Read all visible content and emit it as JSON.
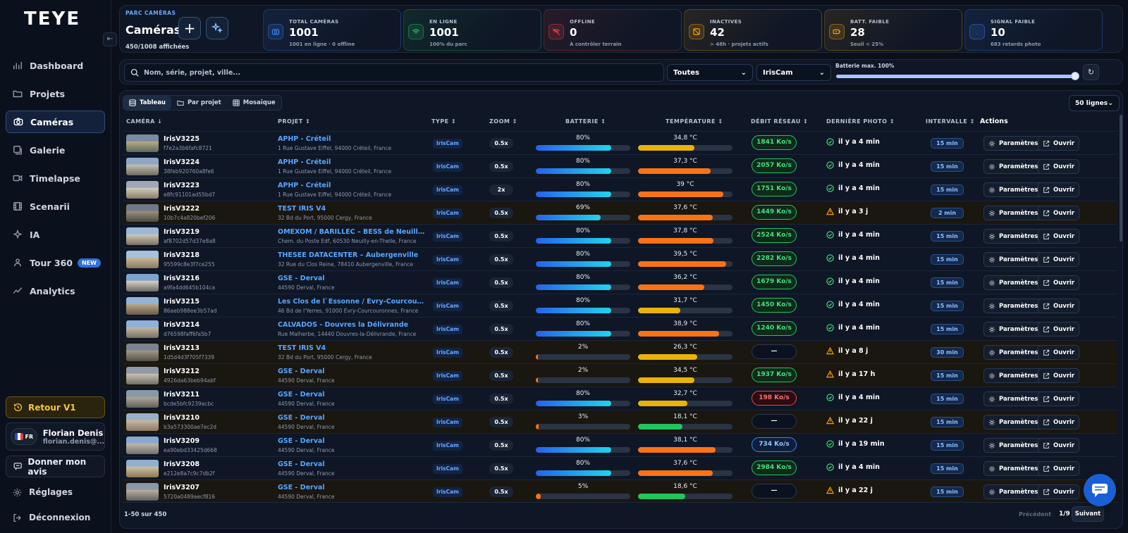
{
  "app": {
    "logo": "TEYE"
  },
  "sidebar": {
    "items": [
      {
        "label": "Dashboard",
        "icon": "bar-chart-icon"
      },
      {
        "label": "Projets",
        "icon": "folder-icon"
      },
      {
        "label": "Caméras",
        "icon": "camera-icon",
        "active": true
      },
      {
        "label": "Galerie",
        "icon": "gallery-icon"
      },
      {
        "label": "Timelapse",
        "icon": "video-icon"
      },
      {
        "label": "Scenarii",
        "icon": "film-icon"
      },
      {
        "label": "IA",
        "icon": "ai-icon"
      },
      {
        "label": "Tour 360",
        "icon": "tour-icon",
        "badge": "NEW"
      },
      {
        "label": "Analytics",
        "icon": "analytics-icon"
      }
    ],
    "retour": "Retour V1",
    "user": {
      "lang": "FR",
      "name": "Florian Denis",
      "email": "florian.denis@..."
    },
    "feedback": "Donner mon avis",
    "settings": "Réglages",
    "logout": "Déconnexion"
  },
  "header": {
    "kicker": "PARC CAMÉRAS",
    "title": "Caméras",
    "count": "450/1008 affichées",
    "kpis": [
      {
        "label": "TOTAL CAMÉRAS",
        "value": "1001",
        "sub": "1001 en ligne · 0 offline",
        "color": "#3b82f6"
      },
      {
        "label": "EN LIGNE",
        "value": "1001",
        "sub": "100% du parc",
        "color": "#22c55e"
      },
      {
        "label": "OFFLINE",
        "value": "0",
        "sub": "À contrôler terrain",
        "color": "#ef4444"
      },
      {
        "label": "INACTIVES",
        "value": "42",
        "sub": "> 48h · projets actifs",
        "color": "#f59e0b"
      },
      {
        "label": "BATT. FAIBLE",
        "value": "28",
        "sub": "Seuil < 25%",
        "color": "#f59e0b"
      },
      {
        "label": "SIGNAL FAIBLE",
        "value": "10",
        "sub": "683 retards photo",
        "color": "#3b82f6"
      }
    ]
  },
  "filters": {
    "search_placeholder": "Nom, série, projet, ville...",
    "status": "Toutes",
    "type": "IrisCam",
    "battery_label": "Batterie max. 100%",
    "battery_max": 100
  },
  "table": {
    "views": [
      "Tableau",
      "Par projet",
      "Mosaïque"
    ],
    "rows_per_page": "50 lignes",
    "headers": {
      "camera": "CAMÉRA",
      "project": "PROJET",
      "type": "TYPE",
      "zoom": "ZOOM",
      "battery": "BATTERIE",
      "temperature": "TEMPÉRATURE",
      "rate": "DÉBIT RÉSEAU",
      "last_photo": "DERNIÈRE PHOTO",
      "interval": "INTERVALLE",
      "actions": "Actions"
    },
    "btn_params": "Paramètres",
    "btn_open": "Ouvrir",
    "rows": [
      {
        "name": "IrisV3225",
        "serial": "f7e2a3b6fafc8721",
        "project": "APHP - Créteil",
        "addr": "1 Rue Gustave Eiffel, 94000 Créteil, France",
        "type": "IrisCam",
        "zoom": "0.5x",
        "battery": 80,
        "battery_label": "80%",
        "temp": "34,8 °C",
        "temp_level": 0.6,
        "temp_color": "#eab308",
        "rate": "1841 Ko/s",
        "rate_status": "good",
        "photo": "il y a 4 min",
        "photo_status": "ok",
        "interval": "15 min"
      },
      {
        "name": "IrisV3224",
        "serial": "38feb920760a8fe6",
        "project": "APHP - Créteil",
        "addr": "1 Rue Gustave Eiffel, 94000 Créteil, France",
        "type": "IrisCam",
        "zoom": "0.5x",
        "battery": 80,
        "battery_label": "80%",
        "temp": "37,3 °C",
        "temp_level": 0.77,
        "temp_color": "#f97316",
        "rate": "2057 Ko/s",
        "rate_status": "good",
        "photo": "il y a 4 min",
        "photo_status": "ok",
        "interval": "15 min"
      },
      {
        "name": "IrisV3223",
        "serial": "e8fc91101ad55bd7",
        "project": "APHP - Créteil",
        "addr": "1 Rue Gustave Eiffel, 94000 Créteil, France",
        "type": "IrisCam",
        "zoom": "2x",
        "battery": 80,
        "battery_label": "80%",
        "temp": "39 °C",
        "temp_level": 0.9,
        "temp_color": "#f97316",
        "rate": "1751 Ko/s",
        "rate_status": "good",
        "photo": "il y a 4 min",
        "photo_status": "ok",
        "interval": "15 min"
      },
      {
        "name": "IrisV3222",
        "serial": "10b7c4a820bef206",
        "project": "TEST IRIS V4",
        "addr": "32 Bd du Port, 95000 Cergy, France",
        "type": "IrisCam",
        "zoom": "0.5x",
        "battery": 69,
        "battery_label": "69%",
        "temp": "37,6 °C",
        "temp_level": 0.79,
        "temp_color": "#f97316",
        "rate": "1449 Ko/s",
        "rate_status": "good",
        "photo": "il y a 3 j",
        "photo_status": "warn",
        "interval": "2 min"
      },
      {
        "name": "IrisV3219",
        "serial": "af8702d57d37e8a8",
        "project": "OMEXOM / BARILLEC – BESS de Neuilly-en-Thelle",
        "addr": "Chem. du Poste Edf, 60530 Neuilly-en-Thelle, France",
        "type": "IrisCam",
        "zoom": "0.5x",
        "battery": 80,
        "battery_label": "80%",
        "temp": "37,8 °C",
        "temp_level": 0.8,
        "temp_color": "#f97316",
        "rate": "2524 Ko/s",
        "rate_status": "good",
        "photo": "il y a 4 min",
        "photo_status": "ok",
        "interval": "15 min"
      },
      {
        "name": "IrisV3218",
        "serial": "95599c8e3f7ce255",
        "project": "THESEE DATACENTER – Aubergenville",
        "addr": "32 Rue du Clos Reine, 78410 Aubergenville, France",
        "type": "IrisCam",
        "zoom": "0.5x",
        "battery": 80,
        "battery_label": "80%",
        "temp": "39,5 °C",
        "temp_level": 0.93,
        "temp_color": "#f97316",
        "rate": "2282 Ko/s",
        "rate_status": "good",
        "photo": "il y a 4 min",
        "photo_status": "ok",
        "interval": "15 min"
      },
      {
        "name": "IrisV3216",
        "serial": "a9fa4dd645b104ca",
        "project": "GSE - Derval",
        "addr": "44590 Derval, France",
        "type": "IrisCam",
        "zoom": "0.5x",
        "battery": 80,
        "battery_label": "80%",
        "temp": "36,2 °C",
        "temp_level": 0.7,
        "temp_color": "#f97316",
        "rate": "1679 Ko/s",
        "rate_status": "good",
        "photo": "il y a 4 min",
        "photo_status": "ok",
        "interval": "15 min"
      },
      {
        "name": "IrisV3215",
        "serial": "86aeb988ee3b57ad",
        "project": "Les Clos de l`Essonne / Évry-Courcouronnes",
        "addr": "46 Bd de l'Yerres, 91000 Évry-Courcouronnes, France",
        "type": "IrisCam",
        "zoom": "0.5x",
        "battery": 80,
        "battery_label": "80%",
        "temp": "31,7 °C",
        "temp_level": 0.45,
        "temp_color": "#eab308",
        "rate": "1450 Ko/s",
        "rate_status": "good",
        "photo": "il y a 4 min",
        "photo_status": "ok",
        "interval": "15 min"
      },
      {
        "name": "IrisV3214",
        "serial": "d76598faff6fa5b7",
        "project": "CALVADOS - Douvres la Délivrande",
        "addr": "Rue Malherbe, 14440 Douvres-la-Délivrande, France",
        "type": "IrisCam",
        "zoom": "0.5x",
        "battery": 80,
        "battery_label": "80%",
        "temp": "38,9 °C",
        "temp_level": 0.86,
        "temp_color": "#f97316",
        "rate": "1240 Ko/s",
        "rate_status": "good",
        "photo": "il y a 4 min",
        "photo_status": "ok",
        "interval": "15 min"
      },
      {
        "name": "IrisV3213",
        "serial": "1d5d4d3f705f7339",
        "project": "TEST IRIS V4",
        "addr": "32 Bd du Port, 95000 Cergy, France",
        "type": "IrisCam",
        "zoom": "0.5x",
        "battery": 2,
        "battery_label": "2%",
        "temp": "26,3 °C",
        "temp_level": 0.63,
        "temp_color": "#eab308",
        "rate": "—",
        "rate_status": "none",
        "photo": "il y a 8 j",
        "photo_status": "warn",
        "interval": "30 min"
      },
      {
        "name": "IrisV3212",
        "serial": "4926da63beb94abf",
        "project": "GSE - Derval",
        "addr": "44590 Derval, France",
        "type": "IrisCam",
        "zoom": "0.5x",
        "battery": 2,
        "battery_label": "2%",
        "temp": "34,5 °C",
        "temp_level": 0.6,
        "temp_color": "#eab308",
        "rate": "1937 Ko/s",
        "rate_status": "good",
        "photo": "il y a 17 h",
        "photo_status": "warn",
        "interval": "15 min"
      },
      {
        "name": "IrisV3211",
        "serial": "bcde5bfc9239acbc",
        "project": "GSE - Derval",
        "addr": "44590 Derval, France",
        "type": "IrisCam",
        "zoom": "0.5x",
        "battery": 80,
        "battery_label": "80%",
        "temp": "32,7 °C",
        "temp_level": 0.52,
        "temp_color": "#eab308",
        "rate": "198 Ko/s",
        "rate_status": "bad",
        "photo": "il y a 4 min",
        "photo_status": "ok",
        "interval": "15 min"
      },
      {
        "name": "IrisV3210",
        "serial": "b3a573300ae7ec2d",
        "project": "GSE - Derval",
        "addr": "44590 Derval, France",
        "type": "IrisCam",
        "zoom": "0.5x",
        "battery": 3,
        "battery_label": "3%",
        "temp": "18,1 °C",
        "temp_level": 0.47,
        "temp_color": "#22c55e",
        "rate": "—",
        "rate_status": "none",
        "photo": "il y a 22 j",
        "photo_status": "warn",
        "interval": "15 min"
      },
      {
        "name": "IrisV3209",
        "serial": "ea90ebd33425d668",
        "project": "GSE - Derval",
        "addr": "44590 Derval, France",
        "type": "IrisCam",
        "zoom": "0.5x",
        "battery": 80,
        "battery_label": "80%",
        "temp": "38,1 °C",
        "temp_level": 0.82,
        "temp_color": "#f97316",
        "rate": "734 Ko/s",
        "rate_status": "mid",
        "photo": "il y a 19 min",
        "photo_status": "ok",
        "interval": "15 min"
      },
      {
        "name": "IrisV3208",
        "serial": "e212e8a7c9c7db2f",
        "project": "GSE - Derval",
        "addr": "44590 Derval, France",
        "type": "IrisCam",
        "zoom": "0.5x",
        "battery": 80,
        "battery_label": "80%",
        "temp": "37,6 °C",
        "temp_level": 0.79,
        "temp_color": "#f97316",
        "rate": "2984 Ko/s",
        "rate_status": "good",
        "photo": "il y a 4 min",
        "photo_status": "ok",
        "interval": "15 min"
      },
      {
        "name": "IrisV3207",
        "serial": "5720a0489aecf816",
        "project": "GSE - Derval",
        "addr": "44590 Derval, France",
        "type": "IrisCam",
        "zoom": "0.5x",
        "battery": 5,
        "battery_label": "5%",
        "temp": "18,6 °C",
        "temp_level": 0.5,
        "temp_color": "#22c55e",
        "rate": "—",
        "rate_status": "none",
        "photo": "il y a 22 j",
        "photo_status": "warn",
        "interval": "15 min"
      }
    ]
  },
  "pagination": {
    "info": "1-50 sur 450",
    "prev": "Précédent",
    "page": "1/9",
    "next": "Suivant"
  }
}
